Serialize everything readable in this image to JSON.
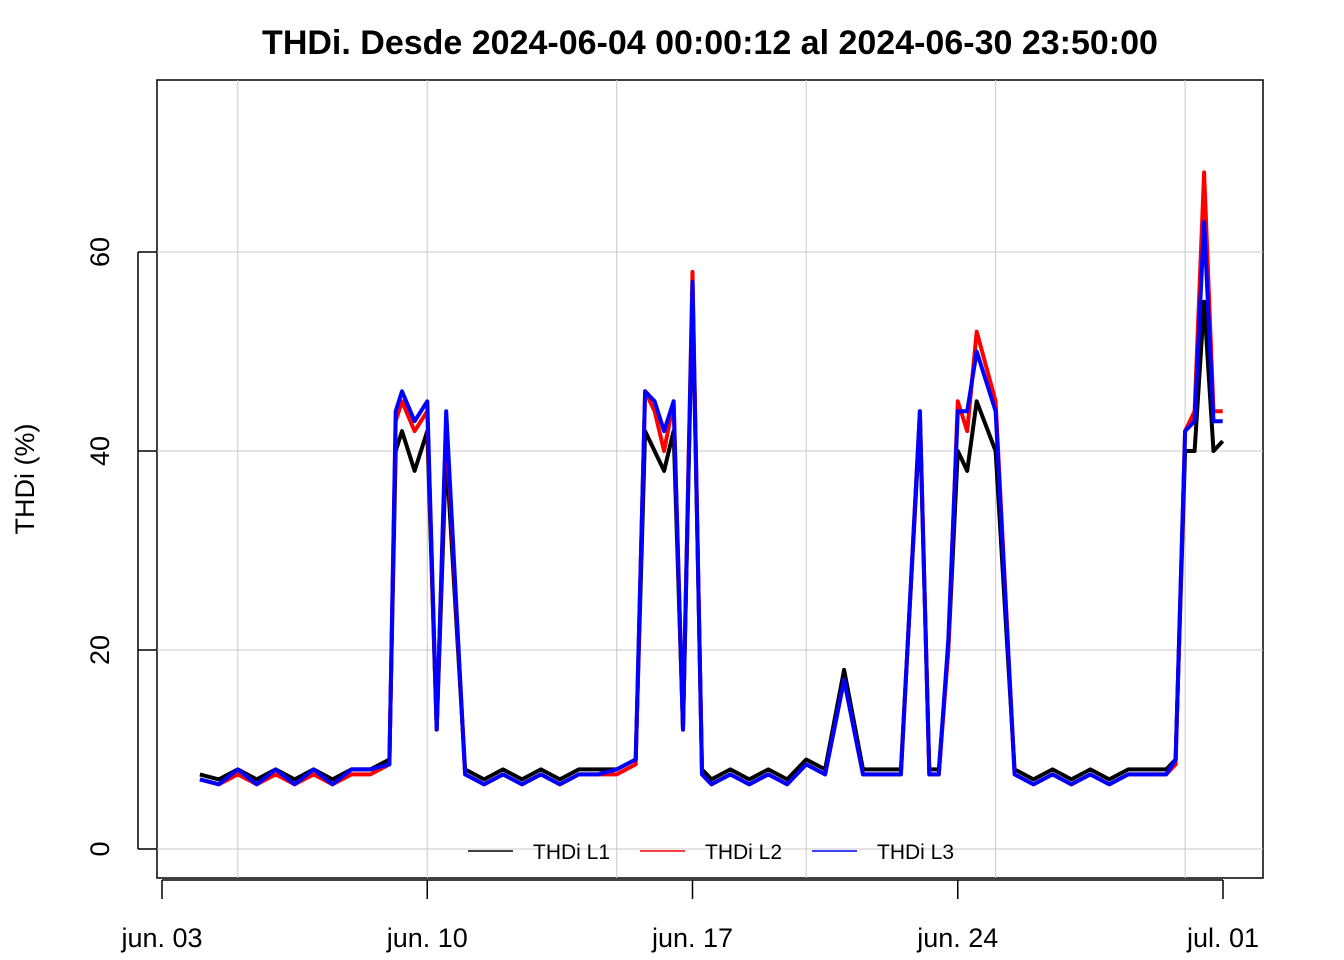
{
  "chart_data": {
    "type": "line",
    "title": "THDi. Desde  2024-06-04 00:00:12  al  2024-06-30 23:50:00",
    "xlabel": "",
    "ylabel": "THDi (%)",
    "x_unit": "date",
    "xlim": [
      "2024-06-03T00:00",
      "2024-07-01T00:00"
    ],
    "ylim": [
      0,
      70
    ],
    "x_ticks": [
      "jun. 03",
      "jun. 10",
      "jun. 17",
      "jun. 24",
      "jul. 01"
    ],
    "y_ticks": [
      "0",
      "20",
      "40",
      "60"
    ],
    "grid": true,
    "legend": "bottom-center",
    "x": [
      "2024-06-04T00:00",
      "2024-06-04T12:00",
      "2024-06-05T00:00",
      "2024-06-05T12:00",
      "2024-06-06T00:00",
      "2024-06-06T12:00",
      "2024-06-07T00:00",
      "2024-06-07T12:00",
      "2024-06-08T00:00",
      "2024-06-08T12:00",
      "2024-06-09T00:00",
      "2024-06-09T04:00",
      "2024-06-09T08:00",
      "2024-06-09T16:00",
      "2024-06-10T00:00",
      "2024-06-10T06:00",
      "2024-06-10T12:00",
      "2024-06-11T00:00",
      "2024-06-11T12:00",
      "2024-06-12T00:00",
      "2024-06-12T12:00",
      "2024-06-13T00:00",
      "2024-06-13T12:00",
      "2024-06-14T00:00",
      "2024-06-14T12:00",
      "2024-06-15T00:00",
      "2024-06-15T12:00",
      "2024-06-15T18:00",
      "2024-06-16T00:00",
      "2024-06-16T06:00",
      "2024-06-16T12:00",
      "2024-06-16T18:00",
      "2024-06-17T00:00",
      "2024-06-17T06:00",
      "2024-06-17T12:00",
      "2024-06-18T00:00",
      "2024-06-18T12:00",
      "2024-06-19T00:00",
      "2024-06-19T12:00",
      "2024-06-20T00:00",
      "2024-06-20T12:00",
      "2024-06-21T00:00",
      "2024-06-21T12:00",
      "2024-06-22T00:00",
      "2024-06-22T12:00",
      "2024-06-23T00:00",
      "2024-06-23T06:00",
      "2024-06-23T12:00",
      "2024-06-23T18:00",
      "2024-06-24T00:00",
      "2024-06-24T06:00",
      "2024-06-24T12:00",
      "2024-06-25T00:00",
      "2024-06-25T12:00",
      "2024-06-26T00:00",
      "2024-06-26T12:00",
      "2024-06-27T00:00",
      "2024-06-27T12:00",
      "2024-06-28T00:00",
      "2024-06-28T12:00",
      "2024-06-29T00:00",
      "2024-06-29T12:00",
      "2024-06-29T18:00",
      "2024-06-30T00:00",
      "2024-06-30T06:00",
      "2024-06-30T12:00",
      "2024-06-30T18:00",
      "2024-06-30T23:50"
    ],
    "series": [
      {
        "name": "THDi L1",
        "color": "#000000",
        "values": [
          7.5,
          7,
          8,
          7,
          8,
          7,
          8,
          7,
          8,
          8,
          9,
          40,
          42,
          38,
          42,
          12,
          40,
          8,
          7,
          8,
          7,
          8,
          7,
          8,
          8,
          8,
          9,
          42,
          40,
          38,
          42,
          12,
          56,
          8,
          7,
          8,
          7,
          8,
          7,
          9,
          8,
          18,
          8,
          8,
          8,
          43,
          8,
          8,
          20,
          40,
          38,
          45,
          40,
          8,
          7,
          8,
          7,
          8,
          7,
          8,
          8,
          8,
          9,
          40,
          40,
          55,
          40,
          41
        ]
      },
      {
        "name": "THDi L2",
        "color": "#ff0000",
        "values": [
          7,
          6.5,
          7.5,
          6.5,
          7.5,
          6.5,
          7.5,
          6.5,
          7.5,
          7.5,
          8.5,
          43,
          45,
          42,
          44,
          12,
          43,
          7.5,
          6.5,
          7.5,
          6.5,
          7.5,
          6.5,
          7.5,
          7.5,
          7.5,
          8.5,
          46,
          44,
          40,
          45,
          12,
          58,
          7.5,
          6.5,
          7.5,
          6.5,
          7.5,
          6.5,
          8.5,
          7.5,
          17,
          7.5,
          7.5,
          7.5,
          44,
          7.5,
          7.5,
          20,
          45,
          42,
          52,
          45,
          7.5,
          6.5,
          7.5,
          6.5,
          7.5,
          6.5,
          7.5,
          7.5,
          7.5,
          8.5,
          42,
          44,
          68,
          44,
          44
        ]
      },
      {
        "name": "THDi L3",
        "color": "#0000ff",
        "values": [
          7,
          6.5,
          8,
          6.5,
          8,
          6.5,
          8,
          6.5,
          8,
          8,
          8.5,
          44,
          46,
          43,
          45,
          12,
          44,
          7.5,
          6.5,
          7.5,
          6.5,
          7.5,
          6.5,
          7.5,
          7.5,
          8,
          9,
          46,
          45,
          42,
          45,
          12,
          57,
          7.5,
          6.5,
          7.5,
          6.5,
          7.5,
          6.5,
          8.5,
          7.5,
          17,
          7.5,
          7.5,
          7.5,
          44,
          7.5,
          7.5,
          21,
          44,
          44,
          50,
          44,
          7.5,
          6.5,
          7.5,
          6.5,
          7.5,
          6.5,
          7.5,
          7.5,
          7.5,
          9,
          42,
          43,
          63,
          43,
          43
        ]
      }
    ]
  }
}
